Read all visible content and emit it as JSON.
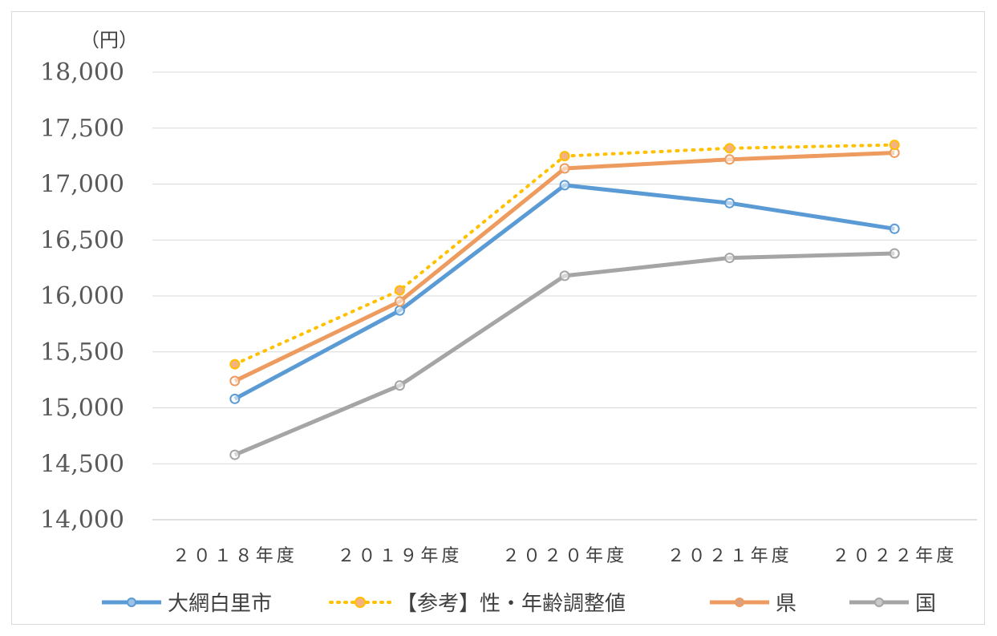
{
  "chart_data": {
    "type": "line",
    "unit_label": "（円）",
    "categories": [
      "２０１８年度",
      "２０１９年度",
      "２０２０年度",
      "２０２１年度",
      "２０２２年度"
    ],
    "ylim": [
      14000,
      18000
    ],
    "yticks": [
      14000,
      14500,
      15000,
      15500,
      16000,
      16500,
      17000,
      17500,
      18000
    ],
    "ytick_labels": [
      "14,000",
      "14,500",
      "15,000",
      "15,500",
      "16,000",
      "16,500",
      "17,000",
      "17,500",
      "18,000"
    ],
    "grid": true,
    "legend_position": "bottom",
    "series": [
      {
        "name": "大網白里市",
        "values": [
          15080,
          15870,
          16990,
          16830,
          16600
        ],
        "color": "#5b9bd5",
        "style": "solid"
      },
      {
        "name": "【参考】性・年齢調整値",
        "values": [
          15390,
          16050,
          17250,
          17320,
          17350
        ],
        "color": "#ffc000",
        "marker_color": "#f4b183",
        "style": "dotted"
      },
      {
        "name": "県",
        "values": [
          15240,
          15950,
          17140,
          17220,
          17280
        ],
        "color": "#ed9b5f",
        "style": "solid"
      },
      {
        "name": "国",
        "values": [
          14580,
          15200,
          16180,
          16340,
          16380
        ],
        "color": "#a5a5a5",
        "style": "solid"
      }
    ]
  }
}
